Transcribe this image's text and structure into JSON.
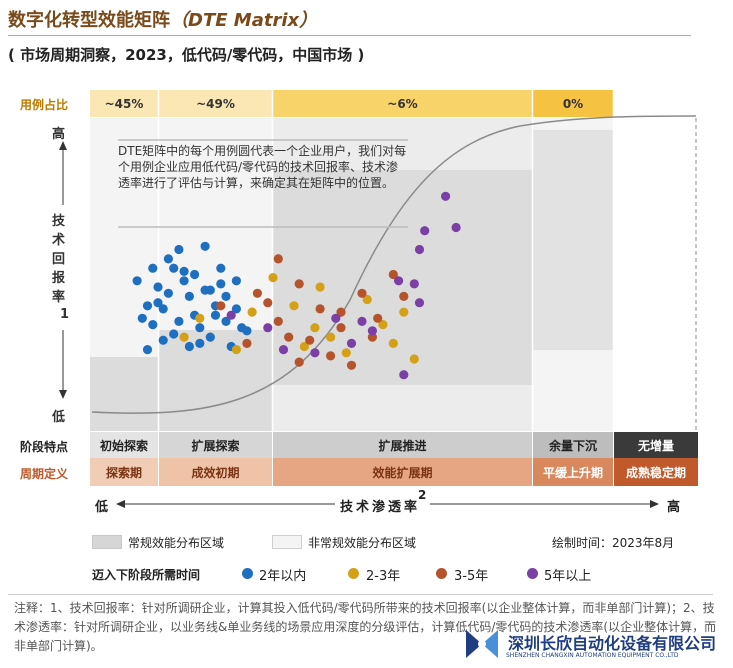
{
  "title": "数字化转型效能矩阵",
  "title_en": "（DTE Matrix）",
  "subtitle": "( 市场周期洞察，2023，低代码/零代码，中国市场 )",
  "share_label": "用例占比",
  "shares": [
    "~45%",
    "~49%",
    "~6%",
    "0%"
  ],
  "y_axis": {
    "high": "高",
    "low": "低",
    "title": "技术回报率",
    "note_mark": "1"
  },
  "x_axis": {
    "low": "低",
    "high": "高",
    "title": "技术渗透率",
    "note_mark": "2"
  },
  "description": "DTE矩阵中的每个用例圆代表一个企业用户，我们对每个用例企业应用低代码/零代码的技术回报率、技术渗透率进行了评估与计算，来确定其在矩阵中的位置。",
  "stage_label": "阶段特点",
  "stages": [
    "初始探索",
    "扩展探索",
    "扩展推进",
    "余量下沉",
    "无增量"
  ],
  "period_label": "周期定义",
  "periods": [
    "探索期",
    "成效初期",
    "效能扩展期",
    "平缓上升期",
    "成熟稳定期"
  ],
  "legend": {
    "regular": "常规效能分布区域",
    "irregular": "非常规效能分布区域",
    "drawn_time": "绘制时间：2023年8月",
    "time_title": "迈入下阶段所需时间",
    "series": [
      {
        "name": "2年以内",
        "color": "#1f6fc0"
      },
      {
        "name": "2-3年",
        "color": "#d4a017"
      },
      {
        "name": "3-5年",
        "color": "#b5532c"
      },
      {
        "name": "5年以上",
        "color": "#7b3fa6"
      }
    ]
  },
  "footnote": "注释：1、技术回报率：针对所调研企业，计算其投入低代码/零代码所带来的技术回报率(以企业整体计算，而非单部门计算)；2、技术渗透率：针对所调研企业，以业务线&单业务线的场景应用深度的分级评估，计算低代码/零代码的技术渗透率(以企业整体计算，而非单部门计算)。",
  "company": {
    "name_cn": "深圳长欣自动化设备有限公司",
    "name_en": "SHENZHEN CHANGXIN AUTOMATION EQUIPMENT CO.,LTD"
  },
  "colors": {
    "accent": "#7a4a1a",
    "share_band": "#fbe7b4",
    "share_band_dark": "#f5c242",
    "period_light": "#efc3a8",
    "period_mid": "#e1a078",
    "period_dark": "#c05a2c",
    "stage_dark": "#3a3a3a"
  },
  "chart_data": {
    "type": "scatter",
    "x_range": [
      "低",
      "高"
    ],
    "y_range": [
      "低",
      "高"
    ],
    "series": [
      {
        "name": "2年以内",
        "points": [
          [
            9,
            48
          ],
          [
            12,
            52
          ],
          [
            13,
            46
          ],
          [
            11,
            40
          ],
          [
            15,
            55
          ],
          [
            17,
            58
          ],
          [
            18,
            51
          ],
          [
            19,
            43
          ],
          [
            22,
            45
          ],
          [
            24,
            37
          ],
          [
            16,
            31
          ],
          [
            12,
            34
          ],
          [
            20,
            37
          ],
          [
            25,
            47
          ],
          [
            14,
            39
          ],
          [
            21,
            33
          ],
          [
            23,
            30
          ],
          [
            19,
            27
          ],
          [
            26,
            43
          ],
          [
            28,
            39
          ],
          [
            29,
            33
          ],
          [
            27,
            27
          ],
          [
            10,
            36
          ],
          [
            15,
            44
          ],
          [
            25,
            52
          ],
          [
            22,
            59
          ],
          [
            18,
            48
          ],
          [
            13,
            41
          ],
          [
            17,
            35
          ],
          [
            24,
            40
          ],
          [
            20,
            50
          ],
          [
            11,
            26
          ],
          [
            14,
            29
          ],
          [
            30,
            32
          ],
          [
            21,
            28
          ],
          [
            26,
            35
          ],
          [
            16,
            52
          ],
          [
            23,
            45
          ],
          [
            28,
            48
          ]
        ]
      },
      {
        "name": "2-3年",
        "points": [
          [
            21,
            36
          ],
          [
            28,
            26
          ],
          [
            18,
            30
          ],
          [
            31,
            38
          ],
          [
            35,
            49
          ],
          [
            39,
            40
          ],
          [
            43,
            33
          ],
          [
            41,
            27
          ],
          [
            46,
            30
          ],
          [
            53,
            42
          ],
          [
            56,
            34
          ],
          [
            49,
            25
          ],
          [
            58,
            28
          ],
          [
            44,
            46
          ],
          [
            60,
            38
          ],
          [
            62,
            23
          ]
        ]
      },
      {
        "name": "3-5年",
        "points": [
          [
            25,
            40
          ],
          [
            32,
            44
          ],
          [
            36,
            35
          ],
          [
            40,
            47
          ],
          [
            44,
            39
          ],
          [
            48,
            33
          ],
          [
            52,
            44
          ],
          [
            46,
            24
          ],
          [
            38,
            30
          ],
          [
            34,
            41
          ],
          [
            55,
            36
          ],
          [
            58,
            50
          ],
          [
            42,
            29
          ],
          [
            36,
            55
          ],
          [
            30,
            28
          ],
          [
            50,
            21
          ],
          [
            60,
            43
          ],
          [
            54,
            30
          ],
          [
            40,
            22
          ],
          [
            48,
            38
          ]
        ]
      },
      {
        "name": "5年以上",
        "points": [
          [
            27,
            37
          ],
          [
            34,
            33
          ],
          [
            37,
            26
          ],
          [
            43,
            25
          ],
          [
            47,
            36
          ],
          [
            50,
            28
          ],
          [
            54,
            32
          ],
          [
            60,
            18
          ],
          [
            63,
            41
          ],
          [
            59,
            48
          ],
          [
            52,
            35
          ],
          [
            68,
            75
          ],
          [
            70,
            65
          ],
          [
            64,
            64
          ],
          [
            63,
            58
          ],
          [
            62,
            47
          ]
        ]
      }
    ]
  }
}
